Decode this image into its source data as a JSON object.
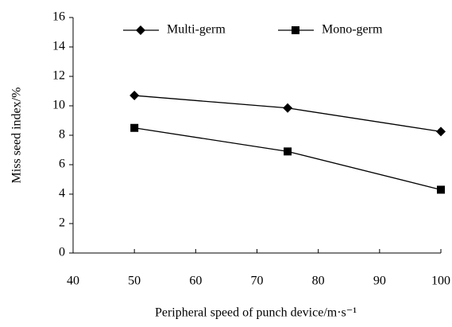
{
  "chart_data": {
    "type": "line",
    "x_label": "Peripheral speed of punch device/m·s⁻¹",
    "y_label": "Miss seed index/%",
    "x": [
      50,
      75,
      100
    ],
    "series": [
      {
        "name": "Multi-germ",
        "color": "#000000",
        "marker": "diamond",
        "values": [
          10.7,
          9.85,
          8.25
        ]
      },
      {
        "name": "Mono-germ",
        "color": "#000000",
        "marker": "square",
        "values": [
          8.5,
          6.9,
          4.3
        ]
      }
    ],
    "xlim": [
      40,
      100
    ],
    "xticks": [
      40,
      50,
      60,
      70,
      80,
      90,
      100
    ],
    "ylim": [
      0,
      16
    ],
    "yticks": [
      0,
      2,
      4,
      6,
      8,
      10,
      12,
      14,
      16
    ],
    "grid": false
  }
}
